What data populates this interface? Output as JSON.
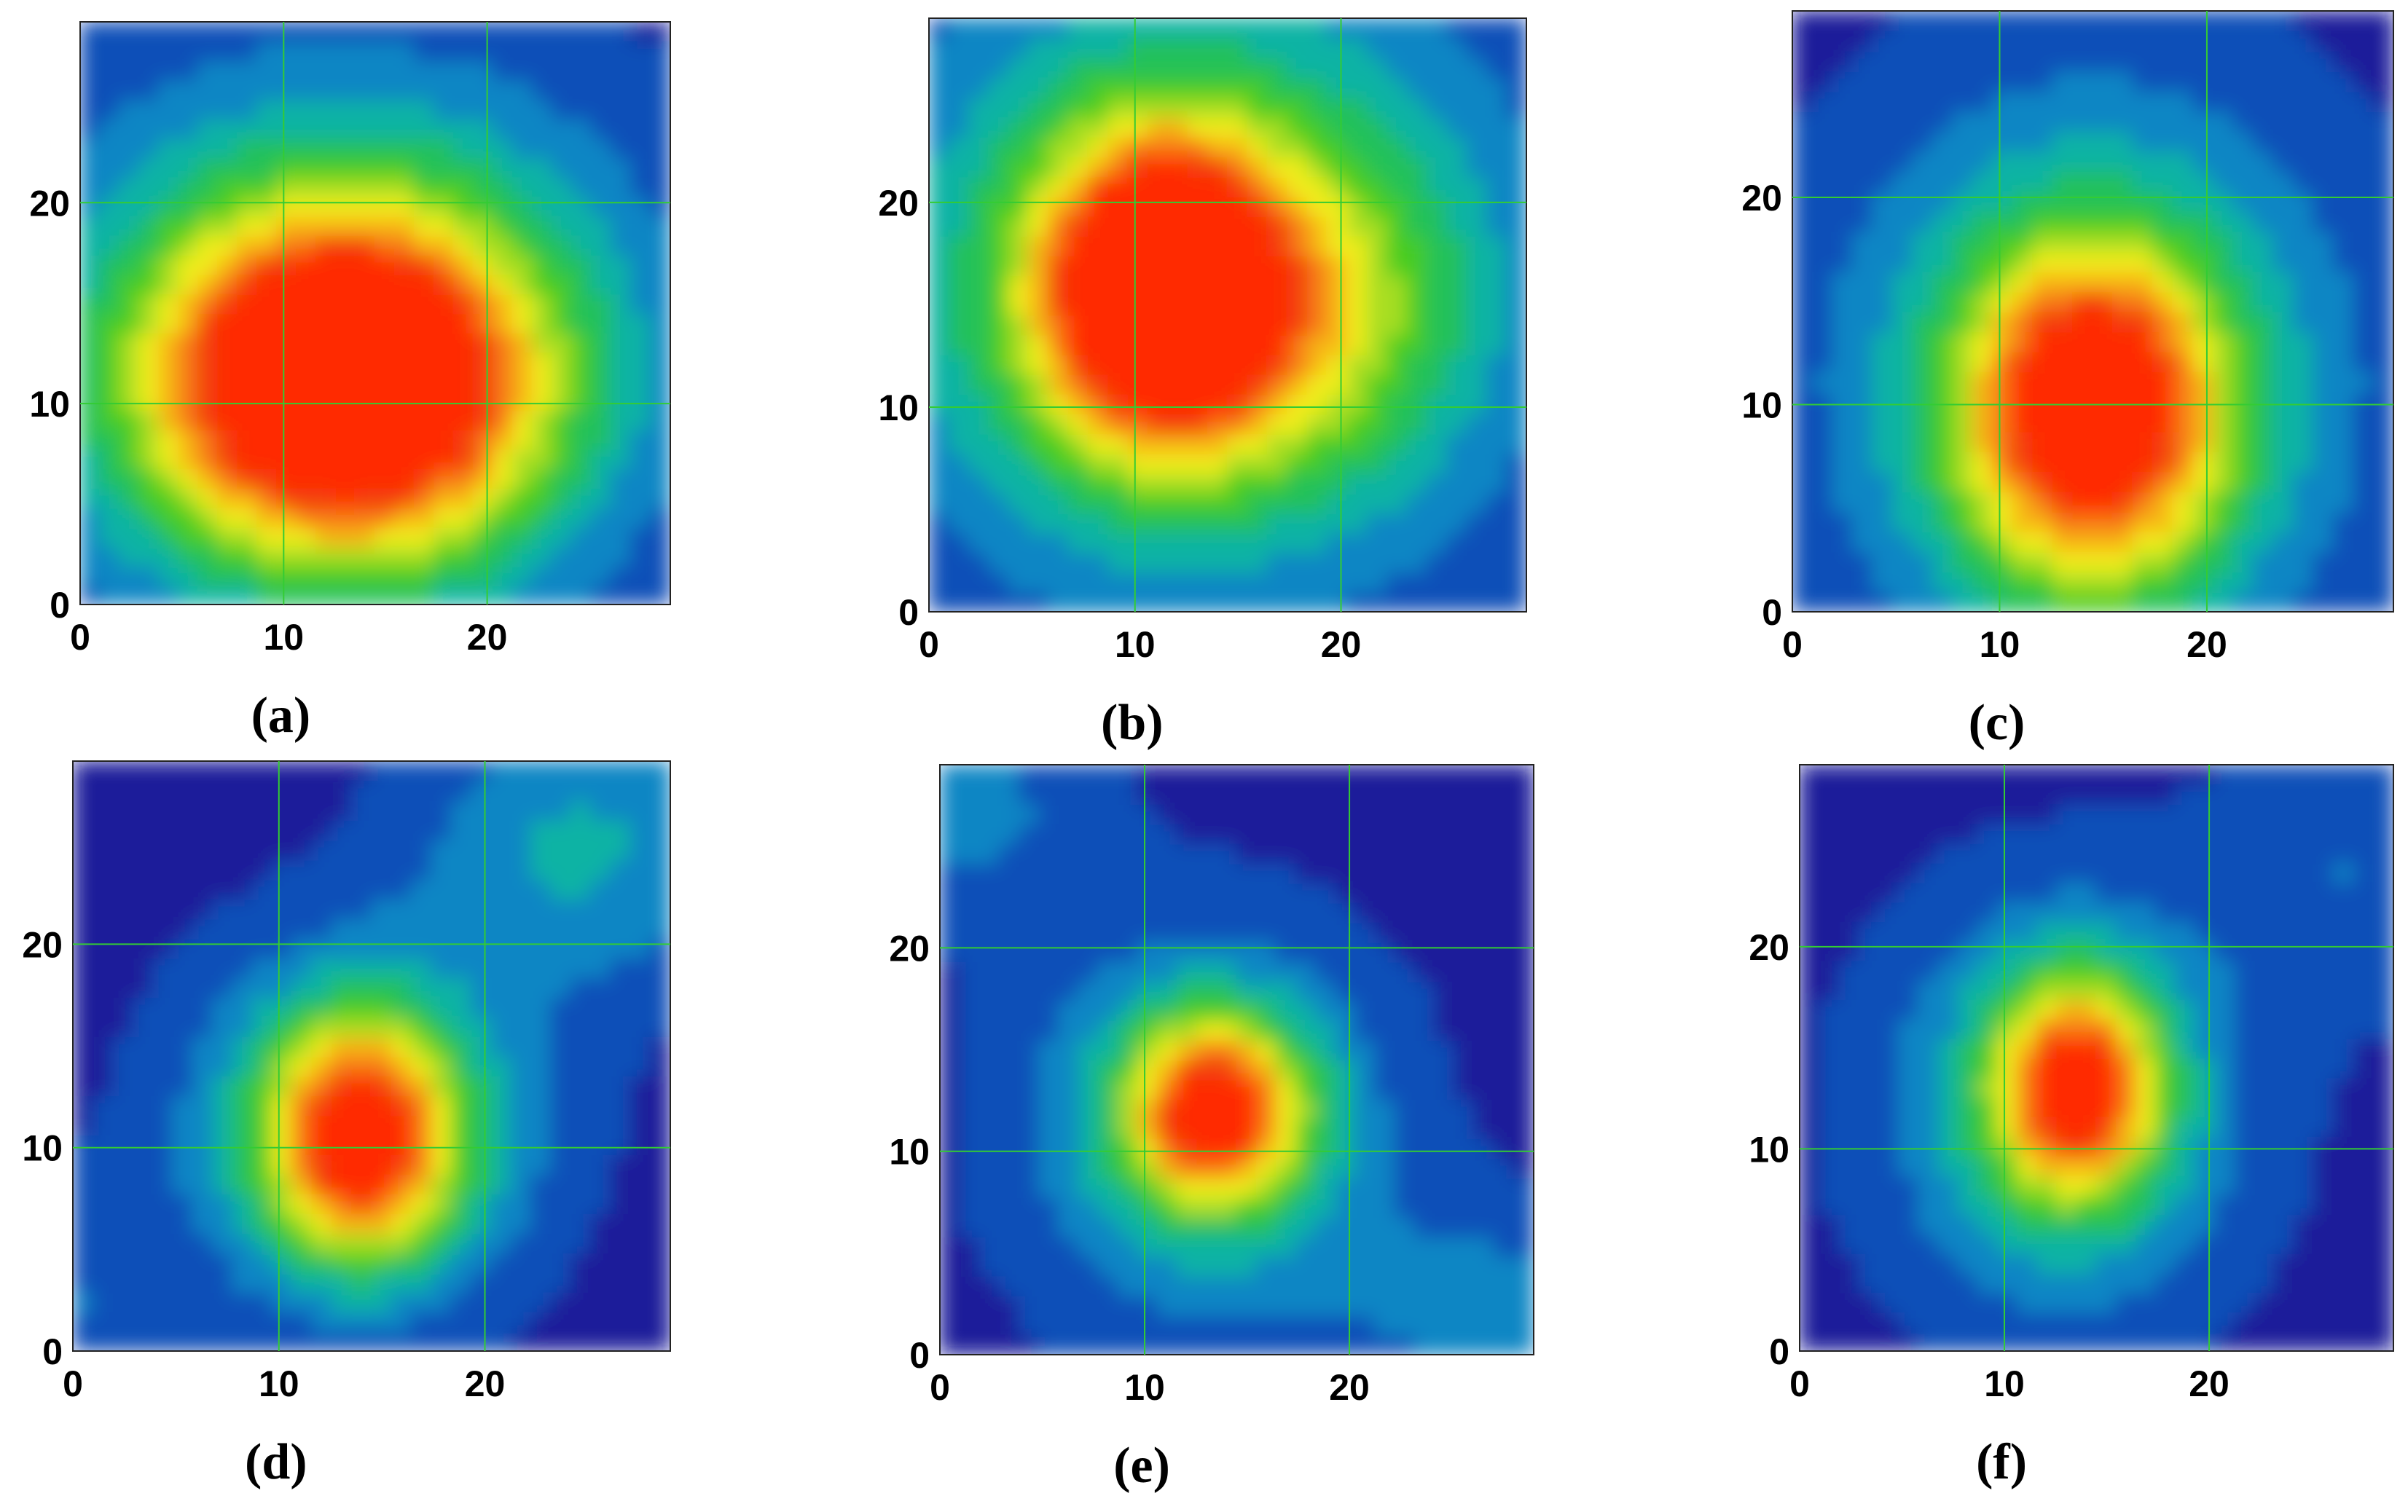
{
  "figure": {
    "panel_labels": [
      "(a)",
      "(b)",
      "(c)",
      "(d)",
      "(e)",
      "(f)"
    ]
  },
  "colors": {
    "background": "#ffffff",
    "gridline": "#33cc33",
    "frame": "#222222",
    "colormap": [
      "#3a0e6e",
      "#1d1d9a",
      "#0b4fb8",
      "#0a86c4",
      "#10b3a4",
      "#22c15a",
      "#47cc22",
      "#a7de22",
      "#f1ee1e",
      "#f7b514",
      "#f77712",
      "#f23a0c",
      "#ff2a00"
    ]
  },
  "chart_data": [
    {
      "type": "heatmap",
      "label": "(a)",
      "x_ticks": [
        "0",
        "10",
        "20"
      ],
      "y_ticks": [
        "0",
        "10",
        "20"
      ],
      "xlim": [
        0,
        29
      ],
      "ylim": [
        0,
        29
      ],
      "grid": true,
      "blobs": [
        {
          "x": 13,
          "y": 11,
          "sx": 6.5,
          "sy": 5.8,
          "amp": 1.0
        },
        {
          "x": 13,
          "y": 13,
          "sx": 11,
          "sy": 10,
          "amp": 0.35
        }
      ]
    },
    {
      "type": "heatmap",
      "label": "(b)",
      "x_ticks": [
        "0",
        "10",
        "20"
      ],
      "y_ticks": [
        "0",
        "10",
        "20"
      ],
      "xlim": [
        0,
        29
      ],
      "ylim": [
        0,
        29
      ],
      "grid": true,
      "blobs": [
        {
          "x": 11,
          "y": 16,
          "sx": 3.5,
          "sy": 5,
          "amp": 0.65
        },
        {
          "x": 14,
          "y": 15,
          "sx": 7,
          "sy": 6,
          "amp": 0.55
        },
        {
          "x": 13,
          "y": 17,
          "sx": 12,
          "sy": 13,
          "amp": 0.3
        }
      ]
    },
    {
      "type": "heatmap",
      "label": "(c)",
      "x_ticks": [
        "0",
        "10",
        "20"
      ],
      "y_ticks": [
        "0",
        "10",
        "20"
      ],
      "xlim": [
        0,
        29
      ],
      "ylim": [
        0,
        29
      ],
      "grid": true,
      "blobs": [
        {
          "x": 14.5,
          "y": 9.5,
          "sx": 4.2,
          "sy": 5.5,
          "amp": 0.8
        },
        {
          "x": 14.5,
          "y": 11,
          "sx": 9,
          "sy": 10,
          "amp": 0.35
        }
      ]
    },
    {
      "type": "heatmap",
      "label": "(d)",
      "x_ticks": [
        "0",
        "10",
        "20"
      ],
      "y_ticks": [
        "0",
        "10",
        "20"
      ],
      "xlim": [
        0,
        29
      ],
      "ylim": [
        0,
        29
      ],
      "grid": true,
      "blobs": [
        {
          "x": 14,
          "y": 10.5,
          "sx": 3.2,
          "sy": 4,
          "amp": 0.78
        },
        {
          "x": 14,
          "y": 11,
          "sx": 6.5,
          "sy": 6.5,
          "amp": 0.28
        },
        {
          "x": 25,
          "y": 25,
          "sx": 6,
          "sy": 5,
          "amp": 0.22
        },
        {
          "x": 0,
          "y": 2,
          "sx": 3,
          "sy": 4,
          "amp": 0.12
        }
      ]
    },
    {
      "type": "heatmap",
      "label": "(e)",
      "x_ticks": [
        "0",
        "10",
        "20"
      ],
      "y_ticks": [
        "0",
        "10",
        "20"
      ],
      "xlim": [
        0,
        29
      ],
      "ylim": [
        0,
        29
      ],
      "grid": true,
      "blobs": [
        {
          "x": 13.5,
          "y": 12,
          "sx": 3,
          "sy": 3.2,
          "amp": 0.75
        },
        {
          "x": 13,
          "y": 11,
          "sx": 6.5,
          "sy": 7,
          "amp": 0.28
        },
        {
          "x": 27,
          "y": 2,
          "sx": 5,
          "sy": 4,
          "amp": 0.15
        },
        {
          "x": 1,
          "y": 27,
          "sx": 5,
          "sy": 4,
          "amp": 0.15
        }
      ]
    },
    {
      "type": "heatmap",
      "label": "(f)",
      "x_ticks": [
        "0",
        "10",
        "20"
      ],
      "y_ticks": [
        "0",
        "10",
        "20"
      ],
      "xlim": [
        0,
        29
      ],
      "ylim": [
        0,
        29
      ],
      "grid": true,
      "blobs": [
        {
          "x": 13.5,
          "y": 13,
          "sx": 2.8,
          "sy": 3.8,
          "amp": 0.75
        },
        {
          "x": 13,
          "y": 12,
          "sx": 6.5,
          "sy": 7.5,
          "amp": 0.28
        },
        {
          "x": 27,
          "y": 24,
          "sx": 5,
          "sy": 5,
          "amp": 0.12
        }
      ]
    }
  ]
}
